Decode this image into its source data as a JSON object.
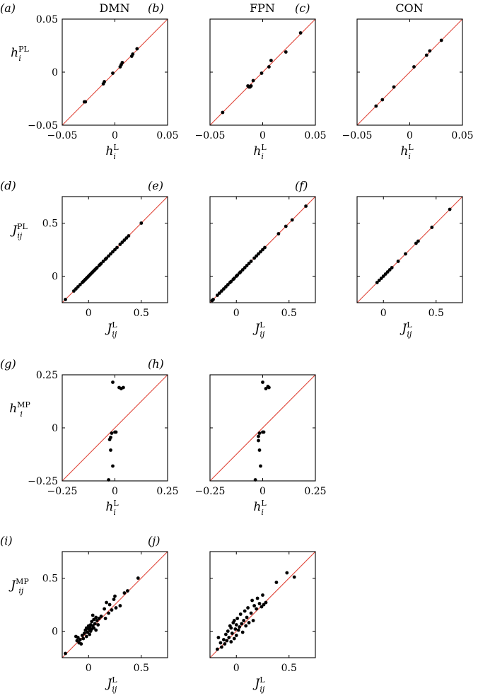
{
  "figure": {
    "column_titles": [
      "DMN",
      "FPN",
      "CON"
    ]
  },
  "chart_data": [
    {
      "id": "a",
      "panel_label": "(a)",
      "type": "scatter",
      "xlabel": {
        "base": "h",
        "sup": "L",
        "sub": "i"
      },
      "ylabel": {
        "base": "h",
        "sup": "PL",
        "sub": "i"
      },
      "xlim": [
        -0.05,
        0.05
      ],
      "ylim": [
        -0.05,
        0.05
      ],
      "xticks": [
        -0.05,
        0,
        0.05
      ],
      "xtick_labels": [
        "−0.05",
        "0",
        "0.05"
      ],
      "yticks": [
        -0.05,
        0,
        0.05
      ],
      "ytick_labels": [
        "−0.05",
        "0",
        "0.05"
      ],
      "diagonal": true,
      "points": [
        [
          -0.029,
          -0.028
        ],
        [
          -0.028,
          -0.028
        ],
        [
          -0.011,
          -0.011
        ],
        [
          -0.01,
          -0.009
        ],
        [
          -0.002,
          -0.001
        ],
        [
          0.005,
          0.005
        ],
        [
          0.006,
          0.007
        ],
        [
          0.007,
          0.009
        ],
        [
          0.016,
          0.015
        ],
        [
          0.017,
          0.017
        ],
        [
          0.021,
          0.022
        ]
      ]
    },
    {
      "id": "b",
      "panel_label": "(b)",
      "type": "scatter",
      "xlabel": {
        "base": "h",
        "sup": "L",
        "sub": "i"
      },
      "ylabel": {
        "base": "h",
        "sup": "PL",
        "sub": "i"
      },
      "xlim": [
        -0.05,
        0.05
      ],
      "ylim": [
        -0.05,
        0.05
      ],
      "xticks": [
        -0.05,
        0,
        0.05
      ],
      "xtick_labels": [
        "−0.05",
        "0",
        "0.05"
      ],
      "yticks": [
        -0.05,
        0,
        0.05
      ],
      "ytick_labels": [
        "",
        "",
        ""
      ],
      "diagonal": true,
      "points": [
        [
          -0.038,
          -0.038
        ],
        [
          -0.014,
          -0.013
        ],
        [
          -0.013,
          -0.014
        ],
        [
          -0.012,
          -0.014
        ],
        [
          -0.011,
          -0.013
        ],
        [
          -0.009,
          -0.008
        ],
        [
          -0.001,
          -0.001
        ],
        [
          0.006,
          0.005
        ],
        [
          0.008,
          0.011
        ],
        [
          0.022,
          0.019
        ],
        [
          0.036,
          0.037
        ]
      ]
    },
    {
      "id": "c",
      "panel_label": "(c)",
      "type": "scatter",
      "xlabel": {
        "base": "h",
        "sup": "L",
        "sub": "i"
      },
      "ylabel": {
        "base": "h",
        "sup": "PL",
        "sub": "i"
      },
      "xlim": [
        -0.05,
        0.05
      ],
      "ylim": [
        -0.05,
        0.05
      ],
      "xticks": [
        -0.05,
        0,
        0.05
      ],
      "xtick_labels": [
        "−0.05",
        "0",
        "0.05"
      ],
      "yticks": [
        -0.05,
        0,
        0.05
      ],
      "ytick_labels": [
        "",
        "",
        ""
      ],
      "diagonal": true,
      "points": [
        [
          -0.032,
          -0.032
        ],
        [
          -0.026,
          -0.026
        ],
        [
          -0.015,
          -0.014
        ],
        [
          0.004,
          0.005
        ],
        [
          0.016,
          0.016
        ],
        [
          0.019,
          0.02
        ],
        [
          0.03,
          0.03
        ]
      ]
    },
    {
      "id": "d",
      "panel_label": "(d)",
      "type": "scatter",
      "xlabel": {
        "base": "J",
        "sup": "L",
        "sub": "ij"
      },
      "ylabel": {
        "base": "J",
        "sup": "PL",
        "sub": "ij"
      },
      "xlim": [
        -0.25,
        0.75
      ],
      "ylim": [
        -0.25,
        0.75
      ],
      "xticks": [
        0,
        0.5
      ],
      "xtick_labels": [
        "0",
        "0.5"
      ],
      "yticks": [
        0,
        0.5
      ],
      "ytick_labels": [
        "0",
        "0.5"
      ],
      "diagonal": true,
      "points": [
        [
          -0.22,
          -0.22
        ],
        [
          -0.14,
          -0.14
        ],
        [
          -0.12,
          -0.12
        ],
        [
          -0.1,
          -0.1
        ],
        [
          -0.08,
          -0.08
        ],
        [
          -0.06,
          -0.06
        ],
        [
          -0.05,
          -0.05
        ],
        [
          -0.04,
          -0.04
        ],
        [
          -0.03,
          -0.03
        ],
        [
          -0.02,
          -0.02
        ],
        [
          -0.01,
          -0.01
        ],
        [
          0.0,
          0.0
        ],
        [
          0.01,
          0.01
        ],
        [
          0.02,
          0.02
        ],
        [
          0.03,
          0.03
        ],
        [
          0.04,
          0.04
        ],
        [
          0.05,
          0.05
        ],
        [
          0.06,
          0.06
        ],
        [
          0.07,
          0.07
        ],
        [
          0.08,
          0.08
        ],
        [
          0.1,
          0.1
        ],
        [
          0.11,
          0.11
        ],
        [
          0.12,
          0.12
        ],
        [
          0.14,
          0.14
        ],
        [
          0.16,
          0.16
        ],
        [
          0.17,
          0.17
        ],
        [
          0.19,
          0.19
        ],
        [
          0.21,
          0.21
        ],
        [
          0.23,
          0.23
        ],
        [
          0.25,
          0.25
        ],
        [
          0.27,
          0.27
        ],
        [
          0.3,
          0.3
        ],
        [
          0.32,
          0.32
        ],
        [
          0.34,
          0.34
        ],
        [
          0.36,
          0.36
        ],
        [
          0.38,
          0.38
        ],
        [
          0.5,
          0.5
        ]
      ]
    },
    {
      "id": "e",
      "panel_label": "(e)",
      "type": "scatter",
      "xlabel": {
        "base": "J",
        "sup": "L",
        "sub": "ij"
      },
      "ylabel": {
        "base": "J",
        "sup": "PL",
        "sub": "ij"
      },
      "xlim": [
        -0.25,
        0.75
      ],
      "ylim": [
        -0.25,
        0.75
      ],
      "xticks": [
        0,
        0.5
      ],
      "xtick_labels": [
        "0",
        "0.5"
      ],
      "yticks": [
        0,
        0.5
      ],
      "ytick_labels": [
        "",
        ""
      ],
      "diagonal": true,
      "points": [
        [
          -0.23,
          -0.23
        ],
        [
          -0.22,
          -0.22
        ],
        [
          -0.18,
          -0.18
        ],
        [
          -0.16,
          -0.16
        ],
        [
          -0.14,
          -0.14
        ],
        [
          -0.12,
          -0.12
        ],
        [
          -0.1,
          -0.1
        ],
        [
          -0.08,
          -0.08
        ],
        [
          -0.06,
          -0.06
        ],
        [
          -0.05,
          -0.05
        ],
        [
          -0.03,
          -0.03
        ],
        [
          -0.02,
          -0.02
        ],
        [
          0.0,
          0.0
        ],
        [
          0.01,
          0.01
        ],
        [
          0.03,
          0.03
        ],
        [
          0.04,
          0.04
        ],
        [
          0.06,
          0.06
        ],
        [
          0.08,
          0.08
        ],
        [
          0.1,
          0.1
        ],
        [
          0.12,
          0.12
        ],
        [
          0.14,
          0.14
        ],
        [
          0.17,
          0.17
        ],
        [
          0.19,
          0.19
        ],
        [
          0.21,
          0.21
        ],
        [
          0.23,
          0.23
        ],
        [
          0.25,
          0.25
        ],
        [
          0.27,
          0.27
        ],
        [
          0.4,
          0.4
        ],
        [
          0.47,
          0.47
        ],
        [
          0.53,
          0.53
        ],
        [
          0.66,
          0.66
        ]
      ]
    },
    {
      "id": "f",
      "panel_label": "(f)",
      "type": "scatter",
      "xlabel": {
        "base": "J",
        "sup": "L",
        "sub": "ij"
      },
      "ylabel": {
        "base": "J",
        "sup": "PL",
        "sub": "ij"
      },
      "xlim": [
        -0.25,
        0.75
      ],
      "ylim": [
        -0.25,
        0.75
      ],
      "xticks": [
        0,
        0.5
      ],
      "xtick_labels": [
        "0",
        "0.5"
      ],
      "yticks": [
        0,
        0.5
      ],
      "ytick_labels": [
        "",
        ""
      ],
      "diagonal": true,
      "points": [
        [
          -0.06,
          -0.06
        ],
        [
          -0.04,
          -0.04
        ],
        [
          -0.02,
          -0.02
        ],
        [
          0.0,
          0.0
        ],
        [
          0.02,
          0.02
        ],
        [
          0.04,
          0.04
        ],
        [
          0.06,
          0.06
        ],
        [
          0.08,
          0.08
        ],
        [
          0.14,
          0.14
        ],
        [
          0.21,
          0.21
        ],
        [
          0.31,
          0.31
        ],
        [
          0.33,
          0.33
        ],
        [
          0.46,
          0.46
        ],
        [
          0.63,
          0.63
        ]
      ]
    },
    {
      "id": "g",
      "panel_label": "(g)",
      "type": "scatter",
      "xlabel": {
        "base": "h",
        "sup": "L",
        "sub": "i"
      },
      "ylabel": {
        "base": "h",
        "sup": "MP",
        "sub": "i"
      },
      "xlim": [
        -0.25,
        0.25
      ],
      "ylim": [
        -0.25,
        0.25
      ],
      "xticks": [
        -0.25,
        0,
        0.25
      ],
      "xtick_labels": [
        "−0.25",
        "0",
        "0.25"
      ],
      "yticks": [
        -0.25,
        0,
        0.25
      ],
      "ytick_labels": [
        "−0.25",
        "0",
        "0.25"
      ],
      "diagonal": true,
      "points": [
        [
          -0.03,
          -0.245
        ],
        [
          -0.01,
          -0.18
        ],
        [
          -0.02,
          -0.105
        ],
        [
          -0.025,
          -0.055
        ],
        [
          -0.02,
          -0.045
        ],
        [
          -0.015,
          -0.025
        ],
        [
          0.0,
          -0.02
        ],
        [
          0.005,
          -0.02
        ],
        [
          0.03,
          0.185
        ],
        [
          0.02,
          0.19
        ],
        [
          0.04,
          0.19
        ],
        [
          -0.01,
          0.215
        ]
      ]
    },
    {
      "id": "h",
      "panel_label": "(h)",
      "type": "scatter",
      "xlabel": {
        "base": "h",
        "sup": "L",
        "sub": "i"
      },
      "ylabel": {
        "base": "h",
        "sup": "MP",
        "sub": "i"
      },
      "xlim": [
        -0.25,
        0.25
      ],
      "ylim": [
        -0.25,
        0.25
      ],
      "xticks": [
        -0.25,
        0,
        0.25
      ],
      "xtick_labels": [
        "−0.25",
        "0",
        "0.25"
      ],
      "yticks": [
        -0.25,
        0,
        0.25
      ],
      "ytick_labels": [
        "",
        "",
        ""
      ],
      "diagonal": true,
      "points": [
        [
          -0.035,
          -0.245
        ],
        [
          -0.01,
          -0.18
        ],
        [
          -0.015,
          -0.105
        ],
        [
          -0.02,
          -0.06
        ],
        [
          -0.02,
          -0.04
        ],
        [
          -0.015,
          -0.025
        ],
        [
          0.0,
          -0.02
        ],
        [
          0.005,
          -0.02
        ],
        [
          0.015,
          0.185
        ],
        [
          0.03,
          0.19
        ],
        [
          0.025,
          0.195
        ],
        [
          0.0,
          0.215
        ]
      ]
    },
    {
      "id": "i",
      "panel_label": "(i)",
      "type": "scatter",
      "xlabel": {
        "base": "J",
        "sup": "L",
        "sub": "ij"
      },
      "ylabel": {
        "base": "J",
        "sup": "MP",
        "sub": "ij"
      },
      "xlim": [
        -0.25,
        0.75
      ],
      "ylim": [
        -0.25,
        0.75
      ],
      "xticks": [
        0,
        0.5
      ],
      "xtick_labels": [
        "0",
        "0.5"
      ],
      "yticks": [
        0,
        0.5
      ],
      "ytick_labels": [
        "0",
        "0.5"
      ],
      "diagonal": true,
      "points": [
        [
          -0.22,
          -0.21
        ],
        [
          -0.12,
          -0.05
        ],
        [
          -0.11,
          -0.09
        ],
        [
          -0.1,
          -0.06
        ],
        [
          -0.09,
          -0.11
        ],
        [
          -0.08,
          -0.08
        ],
        [
          -0.07,
          -0.12
        ],
        [
          -0.06,
          -0.04
        ],
        [
          -0.05,
          -0.07
        ],
        [
          -0.04,
          -0.02
        ],
        [
          -0.03,
          0.01
        ],
        [
          -0.02,
          -0.05
        ],
        [
          -0.02,
          0.03
        ],
        [
          -0.01,
          -0.01
        ],
        [
          0.0,
          0.02
        ],
        [
          0.0,
          0.05
        ],
        [
          0.01,
          -0.03
        ],
        [
          0.01,
          0.04
        ],
        [
          0.02,
          0.0
        ],
        [
          0.02,
          0.06
        ],
        [
          0.03,
          0.02
        ],
        [
          0.03,
          0.09
        ],
        [
          0.04,
          0.05
        ],
        [
          0.04,
          0.15
        ],
        [
          0.05,
          0.03
        ],
        [
          0.05,
          0.11
        ],
        [
          0.06,
          0.07
        ],
        [
          0.07,
          0.01
        ],
        [
          0.07,
          0.13
        ],
        [
          0.08,
          0.1
        ],
        [
          0.09,
          0.06
        ],
        [
          0.1,
          0.12
        ],
        [
          0.12,
          0.14
        ],
        [
          0.15,
          0.21
        ],
        [
          0.16,
          0.12
        ],
        [
          0.17,
          0.27
        ],
        [
          0.19,
          0.17
        ],
        [
          0.2,
          0.25
        ],
        [
          0.22,
          0.2
        ],
        [
          0.24,
          0.3
        ],
        [
          0.25,
          0.33
        ],
        [
          0.26,
          0.22
        ],
        [
          0.3,
          0.24
        ],
        [
          0.34,
          0.36
        ],
        [
          0.37,
          0.38
        ],
        [
          0.47,
          0.5
        ]
      ]
    },
    {
      "id": "j",
      "panel_label": "(j)",
      "type": "scatter",
      "xlabel": {
        "base": "J",
        "sup": "L",
        "sub": "ij"
      },
      "ylabel": {
        "base": "J",
        "sup": "MP",
        "sub": "ij"
      },
      "xlim": [
        -0.25,
        0.75
      ],
      "ylim": [
        -0.25,
        0.75
      ],
      "xticks": [
        0,
        0.5
      ],
      "xtick_labels": [
        "0",
        "0.5"
      ],
      "yticks": [
        0,
        0.5
      ],
      "ytick_labels": [
        "",
        ""
      ],
      "diagonal": true,
      "points": [
        [
          -0.18,
          -0.17
        ],
        [
          -0.17,
          -0.06
        ],
        [
          -0.15,
          -0.11
        ],
        [
          -0.14,
          -0.15
        ],
        [
          -0.12,
          -0.08
        ],
        [
          -0.11,
          -0.12
        ],
        [
          -0.1,
          -0.03
        ],
        [
          -0.09,
          -0.09
        ],
        [
          -0.08,
          0.0
        ],
        [
          -0.07,
          -0.06
        ],
        [
          -0.06,
          0.05
        ],
        [
          -0.05,
          -0.1
        ],
        [
          -0.05,
          0.03
        ],
        [
          -0.04,
          -0.02
        ],
        [
          -0.03,
          0.08
        ],
        [
          -0.02,
          0.1
        ],
        [
          -0.02,
          -0.07
        ],
        [
          -0.01,
          0.02
        ],
        [
          0.0,
          -0.04
        ],
        [
          0.0,
          0.06
        ],
        [
          0.01,
          0.12
        ],
        [
          0.02,
          0.01
        ],
        [
          0.03,
          0.04
        ],
        [
          0.04,
          0.16
        ],
        [
          0.05,
          0.07
        ],
        [
          0.06,
          -0.01
        ],
        [
          0.07,
          0.1
        ],
        [
          0.08,
          0.19
        ],
        [
          0.09,
          0.05
        ],
        [
          0.1,
          0.13
        ],
        [
          0.11,
          0.22
        ],
        [
          0.12,
          0.08
        ],
        [
          0.14,
          0.17
        ],
        [
          0.15,
          0.29
        ],
        [
          0.16,
          0.1
        ],
        [
          0.17,
          0.24
        ],
        [
          0.19,
          0.21
        ],
        [
          0.2,
          0.31
        ],
        [
          0.22,
          0.26
        ],
        [
          0.24,
          0.23
        ],
        [
          0.25,
          0.34
        ],
        [
          0.26,
          0.25
        ],
        [
          0.28,
          0.27
        ],
        [
          0.38,
          0.46
        ],
        [
          0.48,
          0.55
        ],
        [
          0.55,
          0.51
        ]
      ]
    }
  ]
}
